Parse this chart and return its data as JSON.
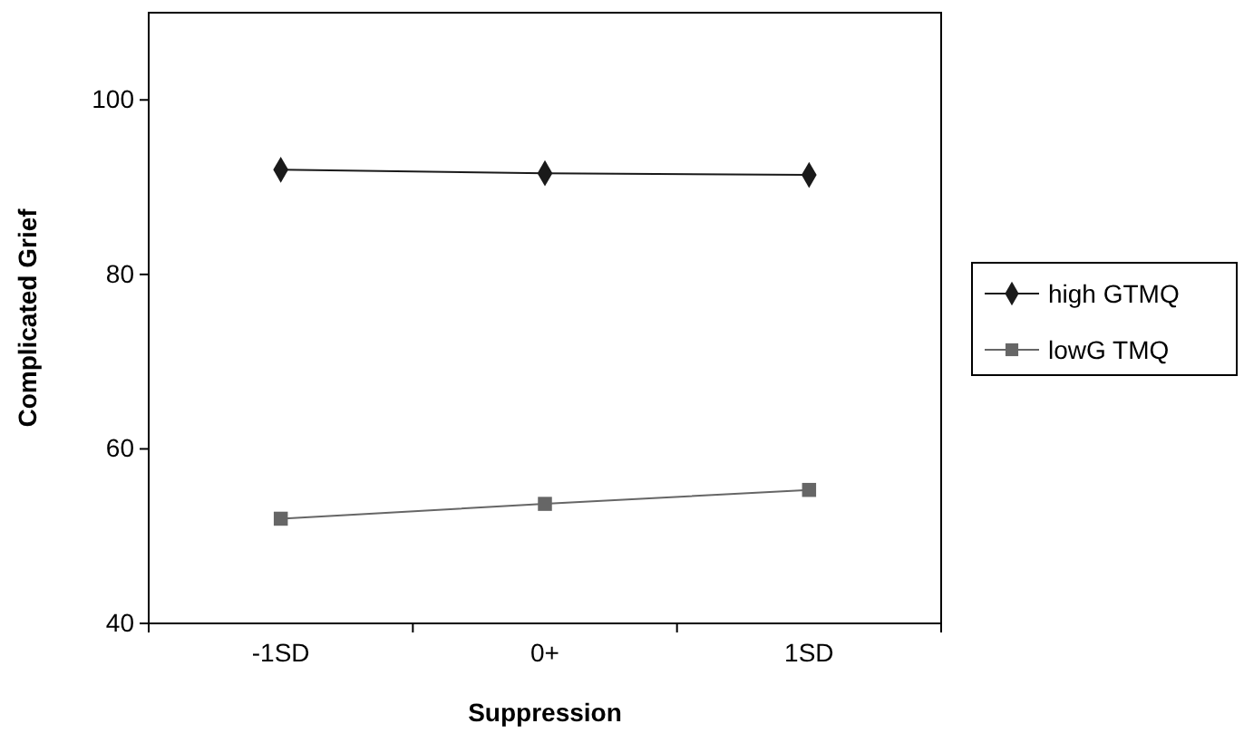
{
  "chart_data": {
    "type": "line",
    "xlabel": "Suppression",
    "ylabel": "Complicated Grief",
    "categories": [
      "-1SD",
      "0+",
      "1SD"
    ],
    "ylim": [
      40,
      110
    ],
    "yticks": [
      40,
      60,
      80,
      100
    ],
    "legend": "right",
    "grid": false,
    "series": [
      {
        "name": "high GTMQ",
        "color": "#1a1a1a",
        "marker": "diamond",
        "values": [
          92.0,
          91.6,
          91.4
        ]
      },
      {
        "name": "lowG TMQ",
        "color": "#666666",
        "marker": "square",
        "values": [
          52.0,
          53.7,
          55.3
        ]
      }
    ]
  }
}
